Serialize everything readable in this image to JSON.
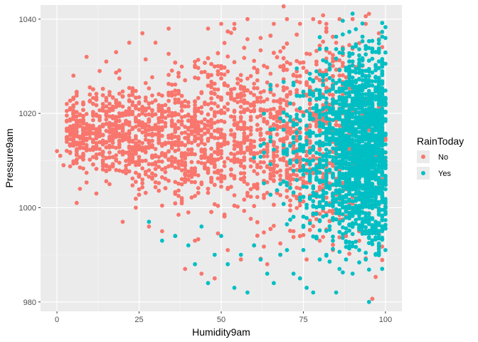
{
  "chart_data": {
    "type": "scatter",
    "xlabel": "Humidity9am",
    "ylabel": "Pressure9am",
    "xlim": [
      -5,
      105
    ],
    "ylim": [
      978,
      1043
    ],
    "x_ticks": [
      0,
      25,
      50,
      75,
      100
    ],
    "y_ticks": [
      980,
      1000,
      1020,
      1040
    ],
    "x_tick_labels": [
      "0",
      "25",
      "50",
      "75",
      "100"
    ],
    "y_tick_labels": [
      "980",
      "1000",
      "1020",
      "1040"
    ],
    "grid": true,
    "background": "#ebebeb",
    "legend": {
      "title": "RainToday",
      "position": "right",
      "entries": [
        {
          "label": "No",
          "color": "#f8766d"
        },
        {
          "label": "Yes",
          "color": "#00bfc4"
        }
      ]
    },
    "series": [
      {
        "name": "No",
        "color": "#f8766d",
        "points": [
          [
            0,
            1012
          ],
          [
            1,
            1011
          ],
          [
            2,
            1009
          ],
          [
            3,
            1022
          ],
          [
            4,
            1016
          ],
          [
            5,
            1028
          ],
          [
            6,
            1001
          ],
          [
            7,
            1004
          ],
          [
            8,
            1015
          ],
          [
            9,
            1032
          ],
          [
            10,
            1024
          ],
          [
            11,
            1020
          ],
          [
            12,
            1003
          ],
          [
            13,
            1029
          ],
          [
            14,
            1010
          ],
          [
            15,
            1031
          ],
          [
            16,
            1005
          ],
          [
            18,
            1033
          ],
          [
            20,
            997
          ],
          [
            22,
            1035
          ],
          [
            24,
            1000
          ],
          [
            26,
            1037
          ],
          [
            28,
            996
          ],
          [
            30,
            1035
          ],
          [
            32,
            995
          ],
          [
            34,
            1038
          ],
          [
            36,
            994
          ],
          [
            38,
            1002
          ],
          [
            39,
            987
          ],
          [
            40,
            999
          ],
          [
            42,
            993
          ],
          [
            44,
            986
          ],
          [
            46,
            1038
          ],
          [
            48,
            985
          ],
          [
            50,
            1039
          ],
          [
            52,
            991
          ],
          [
            54,
            1039
          ],
          [
            56,
            989
          ],
          [
            58,
            1040
          ],
          [
            60,
            992
          ],
          [
            62,
            1036
          ],
          [
            64,
            988
          ],
          [
            66,
            1039
          ],
          [
            68,
            990
          ],
          [
            70,
            1040
          ],
          [
            72,
            995
          ],
          [
            74,
            1039
          ],
          [
            76,
            989
          ],
          [
            78,
            1040
          ],
          [
            80,
            993
          ],
          [
            82,
            1039
          ],
          [
            84,
            991
          ],
          [
            86,
            1040
          ],
          [
            88,
            994
          ],
          [
            90,
            1040
          ],
          [
            92,
            993
          ],
          [
            94,
            1039
          ],
          [
            96,
            995
          ],
          [
            98,
            1037
          ],
          [
            100,
            1010
          ]
        ]
      },
      {
        "name": "Yes",
        "color": "#00bfc4",
        "points": [
          [
            28,
            997
          ],
          [
            32,
            993
          ],
          [
            36,
            994
          ],
          [
            40,
            992
          ],
          [
            42,
            988
          ],
          [
            44,
            996
          ],
          [
            46,
            984
          ],
          [
            48,
            990
          ],
          [
            50,
            994
          ],
          [
            52,
            988
          ],
          [
            54,
            983
          ],
          [
            56,
            990
          ],
          [
            58,
            982
          ],
          [
            60,
            992
          ],
          [
            62,
            989
          ],
          [
            64,
            986
          ],
          [
            66,
            984
          ],
          [
            68,
            990
          ],
          [
            70,
            991
          ],
          [
            72,
            986
          ],
          [
            74,
            985
          ],
          [
            76,
            983
          ],
          [
            78,
            982
          ],
          [
            80,
            989
          ],
          [
            82,
            990
          ],
          [
            84,
            993
          ],
          [
            85,
            982
          ],
          [
            86,
            987
          ],
          [
            88,
            989
          ],
          [
            90,
            986
          ],
          [
            92,
            991
          ],
          [
            94,
            989
          ],
          [
            95,
            980
          ],
          [
            96,
            993
          ],
          [
            97,
            990
          ],
          [
            98,
            992
          ],
          [
            99,
            995
          ],
          [
            100,
            991
          ],
          [
            100,
            1036
          ],
          [
            90,
            1034
          ]
        ]
      }
    ]
  }
}
